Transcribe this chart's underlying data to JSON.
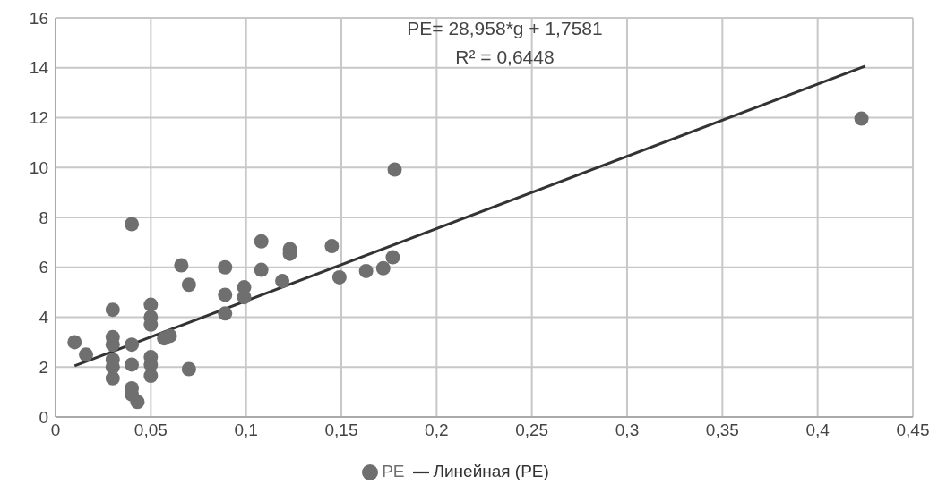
{
  "chart_data": {
    "type": "scatter",
    "series": [
      {
        "name": "PE",
        "marker": "circle",
        "color": "#6f6f6f",
        "x": [
          0.01,
          0.016,
          0.03,
          0.03,
          0.03,
          0.03,
          0.03,
          0.03,
          0.04,
          0.04,
          0.04,
          0.04,
          0.04,
          0.043,
          0.05,
          0.05,
          0.05,
          0.05,
          0.05,
          0.05,
          0.057,
          0.06,
          0.066,
          0.07,
          0.07,
          0.089,
          0.089,
          0.089,
          0.099,
          0.099,
          0.108,
          0.108,
          0.119,
          0.123,
          0.123,
          0.145,
          0.149,
          0.163,
          0.172,
          0.177,
          0.178,
          0.423
        ],
        "values": [
          3.0,
          2.5,
          4.3,
          3.2,
          2.9,
          2.3,
          2.0,
          1.55,
          7.73,
          2.9,
          2.1,
          1.15,
          0.9,
          0.6,
          4.5,
          4.0,
          3.7,
          2.4,
          2.1,
          1.65,
          3.15,
          3.25,
          6.08,
          5.3,
          1.92,
          6.0,
          4.9,
          4.15,
          5.2,
          4.8,
          7.04,
          5.9,
          5.45,
          6.73,
          6.54,
          6.85,
          5.6,
          5.85,
          5.96,
          6.4,
          9.92,
          11.96
        ]
      },
      {
        "name": "Линейная (PE)",
        "type": "line",
        "marker": "none",
        "color": "#333333",
        "x": [
          0.01,
          0.425
        ],
        "values": [
          2.05,
          14.07
        ]
      }
    ],
    "annotations": [
      "PE= 28,958*g + 1,7581",
      "R² = 0,6448"
    ],
    "xlim": [
      0,
      0.45
    ],
    "xticks": [
      0,
      {
        "value": 0.05,
        "label": "0,05"
      },
      {
        "value": 0.1,
        "label": "0,1"
      },
      {
        "value": 0.15,
        "label": "0,15"
      },
      {
        "value": 0.2,
        "label": "0,2"
      },
      {
        "value": 0.25,
        "label": "0,25"
      },
      {
        "value": 0.3,
        "label": "0,3"
      },
      {
        "value": 0.35,
        "label": "0,35"
      },
      {
        "value": 0.4,
        "label": "0,4"
      },
      {
        "value": 0.45,
        "label": "0,45"
      }
    ],
    "ylim": [
      0,
      16
    ],
    "yticks": [
      0,
      2,
      4,
      6,
      8,
      10,
      12,
      14,
      16
    ],
    "grid": true,
    "legend": "bottom",
    "line_style": "solid"
  }
}
